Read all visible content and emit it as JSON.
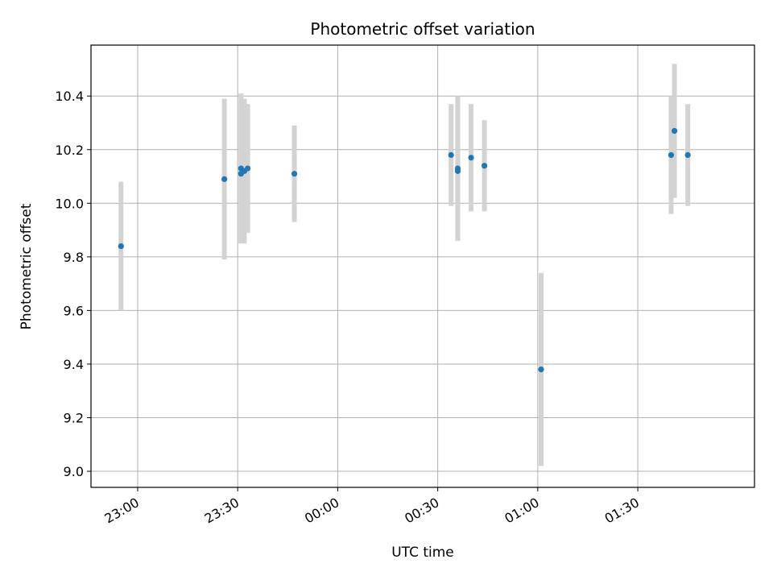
{
  "chart_data": {
    "type": "scatter",
    "title": "Photometric offset variation",
    "xlabel": "UTC time",
    "ylabel": "Photometric offset",
    "x_unit": "UTC time (HH:MM), dates running past midnight",
    "xlim": [
      "22:46",
      "02:05"
    ],
    "ylim": [
      8.94,
      10.59
    ],
    "x_ticks": [
      "23:00",
      "23:30",
      "00:00",
      "00:30",
      "01:00",
      "01:30"
    ],
    "y_ticks": [
      9.0,
      9.2,
      9.4,
      9.6,
      9.8,
      10.0,
      10.2,
      10.4
    ],
    "grid": true,
    "marker_color": "#1f77b4",
    "errorbar_color": "#d3d3d3",
    "points": [
      {
        "t": "22:55",
        "y": 9.84,
        "err": 0.24
      },
      {
        "t": "23:26",
        "y": 10.09,
        "err": 0.3
      },
      {
        "t": "23:31",
        "y": 10.13,
        "err": 0.28
      },
      {
        "t": "23:31",
        "y": 10.11,
        "err": 0.26
      },
      {
        "t": "23:32",
        "y": 10.12,
        "err": 0.27
      },
      {
        "t": "23:33",
        "y": 10.13,
        "err": 0.24
      },
      {
        "t": "23:47",
        "y": 10.11,
        "err": 0.18
      },
      {
        "t": "00:34",
        "y": 10.18,
        "err": 0.19
      },
      {
        "t": "00:36",
        "y": 10.12,
        "err": 0.26
      },
      {
        "t": "00:36",
        "y": 10.13,
        "err": 0.27
      },
      {
        "t": "00:40",
        "y": 10.17,
        "err": 0.2
      },
      {
        "t": "00:44",
        "y": 10.14,
        "err": 0.17
      },
      {
        "t": "01:01",
        "y": 9.38,
        "err": 0.36
      },
      {
        "t": "01:40",
        "y": 10.18,
        "err": 0.22
      },
      {
        "t": "01:41",
        "y": 10.27,
        "err": 0.25
      },
      {
        "t": "01:45",
        "y": 10.18,
        "err": 0.19
      }
    ]
  }
}
